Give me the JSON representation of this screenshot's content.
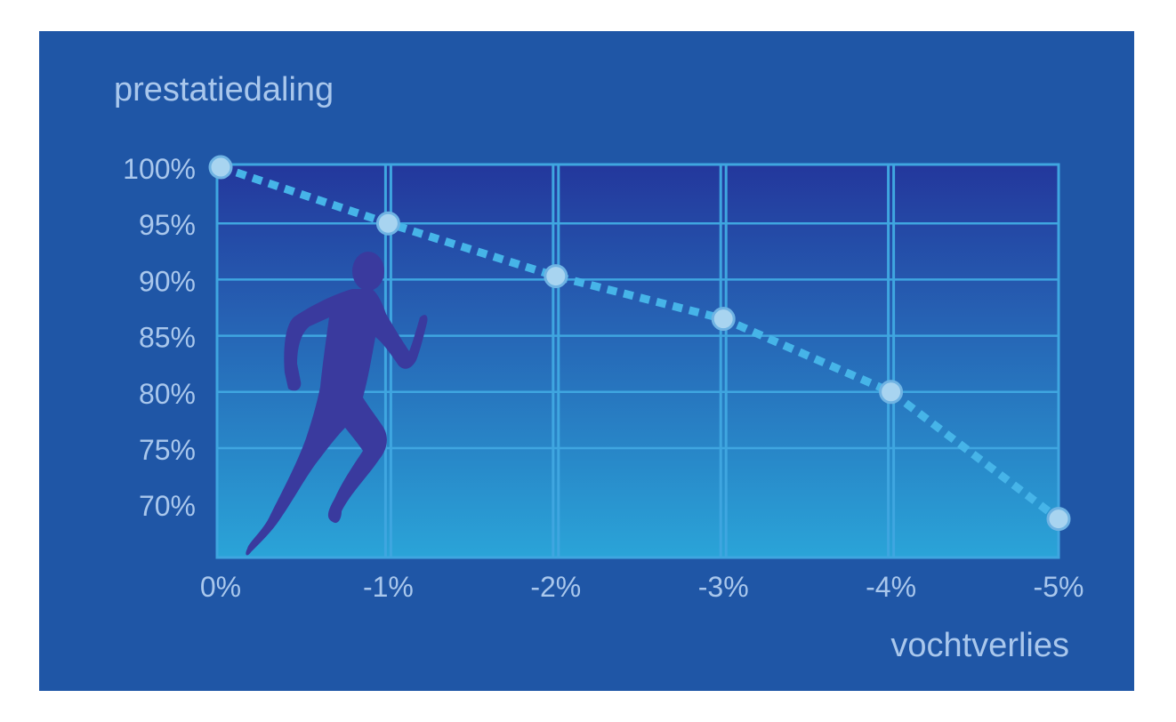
{
  "chart_data": {
    "type": "line",
    "ylabel": "prestatiedaling",
    "xlabel": "vochtverlies",
    "x_ticks": [
      "0%",
      "-1%",
      "-2%",
      "-3%",
      "-4%",
      "-5%"
    ],
    "y_ticks": [
      "100%",
      "95%",
      "90%",
      "85%",
      "80%",
      "75%",
      "70%"
    ],
    "x": [
      0,
      -1,
      -2,
      -3,
      -4,
      -5
    ],
    "y": [
      100,
      95,
      90.3,
      86.5,
      80,
      68.7
    ],
    "xlim": [
      0,
      -5
    ],
    "ylim": [
      100,
      70
    ],
    "grid": true,
    "colors": {
      "panel": "#1f56a6",
      "plot_top": "#23379c",
      "plot_bottom": "#2aa4d8",
      "grid": "#3fa6e0",
      "line": "#46b4e8",
      "marker": "#a8d4f0",
      "runner": "#3a3a9e",
      "text": "#a9c7ec"
    },
    "icon": "runner-silhouette-icon"
  }
}
